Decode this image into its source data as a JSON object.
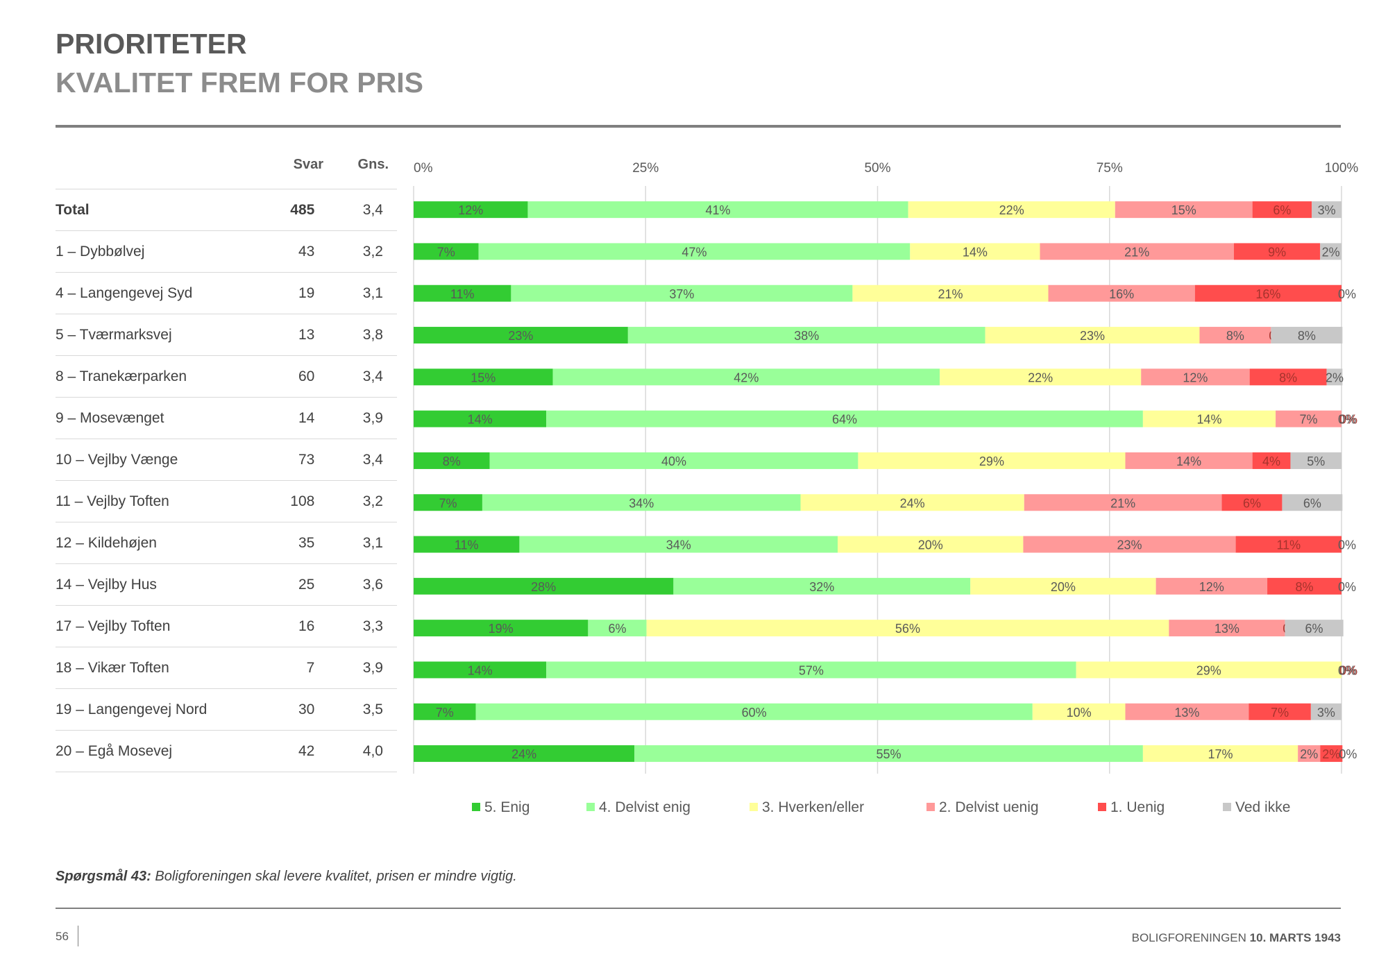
{
  "header": {
    "title": "PRIORITETER",
    "subtitle": "KVALITET FREM FOR PRIS"
  },
  "table_headers": {
    "svar": "Svar",
    "gns": "Gns."
  },
  "rows": [
    {
      "name": "Total",
      "svar": "485",
      "gns": "3,4"
    },
    {
      "name": "1 – Dybbølvej",
      "svar": "43",
      "gns": "3,2"
    },
    {
      "name": "4 – Langengevej Syd",
      "svar": "19",
      "gns": "3,1"
    },
    {
      "name": "5 – Tværmarksvej",
      "svar": "13",
      "gns": "3,8"
    },
    {
      "name": "8 – Tranekærparken",
      "svar": "60",
      "gns": "3,4"
    },
    {
      "name": "9 – Mosevænget",
      "svar": "14",
      "gns": "3,9"
    },
    {
      "name": "10 – Vejlby Vænge",
      "svar": "73",
      "gns": "3,4"
    },
    {
      "name": "11 – Vejlby Toften",
      "svar": "108",
      "gns": "3,2"
    },
    {
      "name": "12 – Kildehøjen",
      "svar": "35",
      "gns": "3,1"
    },
    {
      "name": "14 – Vejlby Hus",
      "svar": "25",
      "gns": "3,6"
    },
    {
      "name": "17 – Vejlby Toften",
      "svar": "16",
      "gns": "3,3"
    },
    {
      "name": "18 – Vikær Toften",
      "svar": "7",
      "gns": "3,9"
    },
    {
      "name": "19 – Langengevej Nord",
      "svar": "30",
      "gns": "3,5"
    },
    {
      "name": "20 – Egå Mosevej",
      "svar": "42",
      "gns": "4,0"
    }
  ],
  "chart_data": {
    "type": "bar",
    "orientation": "horizontal",
    "stacked": "percent",
    "xlim": [
      0,
      100
    ],
    "x_ticks": [
      "0%",
      "25%",
      "50%",
      "75%",
      "100%"
    ],
    "categories": [
      "Total",
      "1 – Dybbølvej",
      "4 – Langengevej Syd",
      "5 – Tværmarksvej",
      "8 – Tranekærparken",
      "9 – Mosevænget",
      "10 – Vejlby Vænge",
      "11 – Vejlby Toften",
      "12 – Kildehøjen",
      "14 – Vejlby Hus",
      "17 – Vejlby Toften",
      "18 – Vikær Toften",
      "19 – Langengevej Nord",
      "20 – Egå Mosevej"
    ],
    "series": [
      {
        "name": "5. Enig",
        "color": "#33cc33",
        "values": [
          12.3,
          7.0,
          10.5,
          23.1,
          15.0,
          14.3,
          8.2,
          7.4,
          11.4,
          28.0,
          18.8,
          14.3,
          6.7,
          23.8
        ]
      },
      {
        "name": "4. Delvist enig",
        "color": "#99ff99",
        "values": [
          41.0,
          46.5,
          36.8,
          38.5,
          41.7,
          64.3,
          39.7,
          34.3,
          34.3,
          32.0,
          6.3,
          57.1,
          60.0,
          54.8
        ]
      },
      {
        "name": "3. Hverken/eller",
        "color": "#ffff99",
        "values": [
          22.3,
          14.0,
          21.1,
          23.1,
          21.7,
          14.3,
          28.8,
          24.1,
          20.0,
          20.0,
          56.3,
          28.6,
          10.0,
          16.7
        ]
      },
      {
        "name": "2. Delvist uenig",
        "color": "#ff9999",
        "values": [
          14.8,
          20.9,
          15.8,
          7.7,
          11.7,
          7.1,
          13.7,
          21.3,
          22.9,
          12.0,
          12.5,
          0.0,
          13.3,
          2.4
        ]
      },
      {
        "name": "1. Uenig",
        "color": "#ff4d4d",
        "values": [
          6.4,
          9.3,
          15.8,
          0.0,
          8.3,
          0.0,
          4.1,
          6.5,
          11.4,
          8.0,
          0.0,
          0.0,
          6.7,
          2.4
        ]
      },
      {
        "name": "Ved ikke",
        "color": "#c8c8c8",
        "values": [
          3.2,
          2.3,
          0.0,
          7.7,
          1.7,
          0.0,
          5.5,
          6.5,
          0.0,
          0.0,
          6.3,
          0.0,
          3.3,
          0.0
        ]
      }
    ],
    "data_labels": [
      [
        "12%",
        "41%",
        "22%",
        "15%",
        "6%",
        "3%"
      ],
      [
        "7%",
        "47%",
        "14%",
        "21%",
        "9%",
        "2%"
      ],
      [
        "11%",
        "37%",
        "21%",
        "16%",
        "16%",
        "0%"
      ],
      [
        "23%",
        "38%",
        "23%",
        "8%",
        "0%",
        "8%"
      ],
      [
        "15%",
        "42%",
        "22%",
        "12%",
        "8%",
        "2%"
      ],
      [
        "14%",
        "64%",
        "14%",
        "7%",
        "0%",
        "0%"
      ],
      [
        "8%",
        "40%",
        "29%",
        "14%",
        "4%",
        "5%"
      ],
      [
        "7%",
        "34%",
        "24%",
        "21%",
        "6%",
        "6%"
      ],
      [
        "11%",
        "34%",
        "20%",
        "23%",
        "11%",
        "0%"
      ],
      [
        "28%",
        "32%",
        "20%",
        "12%",
        "8%",
        "0%"
      ],
      [
        "19%",
        "6%",
        "56%",
        "13%",
        "0%",
        "6%"
      ],
      [
        "14%",
        "57%",
        "29%",
        "0%",
        "0%",
        "0%"
      ],
      [
        "7%",
        "60%",
        "10%",
        "13%",
        "7%",
        "3%"
      ],
      [
        "24%",
        "55%",
        "17%",
        "2%",
        "2%",
        "0%"
      ]
    ],
    "legend_position": "bottom"
  },
  "footer": {
    "question_label": "Spørgsmål 43:",
    "question_text": " Boligforeningen skal levere kvalitet, prisen er mindre vigtig.",
    "page_number": "56",
    "org": "BOLIGFORENINGEN ",
    "date": "10. MARTS 1943"
  }
}
